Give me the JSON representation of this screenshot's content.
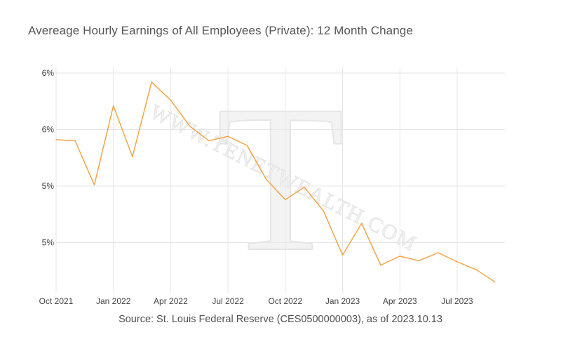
{
  "chart_data": {
    "type": "line",
    "title": "Avereage Hourly Earnings of All Employees (Private): 12 Month Change",
    "xlabel": "",
    "ylabel": "",
    "source": "Source: St. Louis Federal Reserve (CES0500000003), as of 2023.10.13",
    "watermark": {
      "letter": "T",
      "text": "WWW.TENETWEALTH.COM"
    },
    "line_color": "#f2a03d",
    "grid": true,
    "x_ticks": [
      "Oct 2021",
      "Jan 2022",
      "Apr 2022",
      "Jul 2022",
      "Oct 2022",
      "Jan 2023",
      "Apr 2023",
      "Jul 2023"
    ],
    "y_ticks": [
      {
        "value": 4.5,
        "label": "5%"
      },
      {
        "value": 5.0,
        "label": "5%"
      },
      {
        "value": 5.5,
        "label": "6%"
      },
      {
        "value": 6.0,
        "label": "6%"
      }
    ],
    "ylim": [
      4.05,
      6.05
    ],
    "series": [
      {
        "x": [
          "2021-10",
          "2021-11",
          "2021-12",
          "2022-01",
          "2022-02",
          "2022-03",
          "2022-04",
          "2022-05",
          "2022-06",
          "2022-07",
          "2022-08",
          "2022-09",
          "2022-10",
          "2022-11",
          "2022-12",
          "2023-01",
          "2023-02",
          "2023-03",
          "2023-04",
          "2023-05",
          "2023-06",
          "2023-07",
          "2023-08",
          "2023-09"
        ],
        "values": [
          5.41,
          5.4,
          5.01,
          5.71,
          5.26,
          5.92,
          5.76,
          5.53,
          5.4,
          5.44,
          5.36,
          5.06,
          4.88,
          4.99,
          4.78,
          4.39,
          4.67,
          4.3,
          4.38,
          4.34,
          4.41,
          4.33,
          4.26,
          4.15
        ]
      }
    ]
  }
}
